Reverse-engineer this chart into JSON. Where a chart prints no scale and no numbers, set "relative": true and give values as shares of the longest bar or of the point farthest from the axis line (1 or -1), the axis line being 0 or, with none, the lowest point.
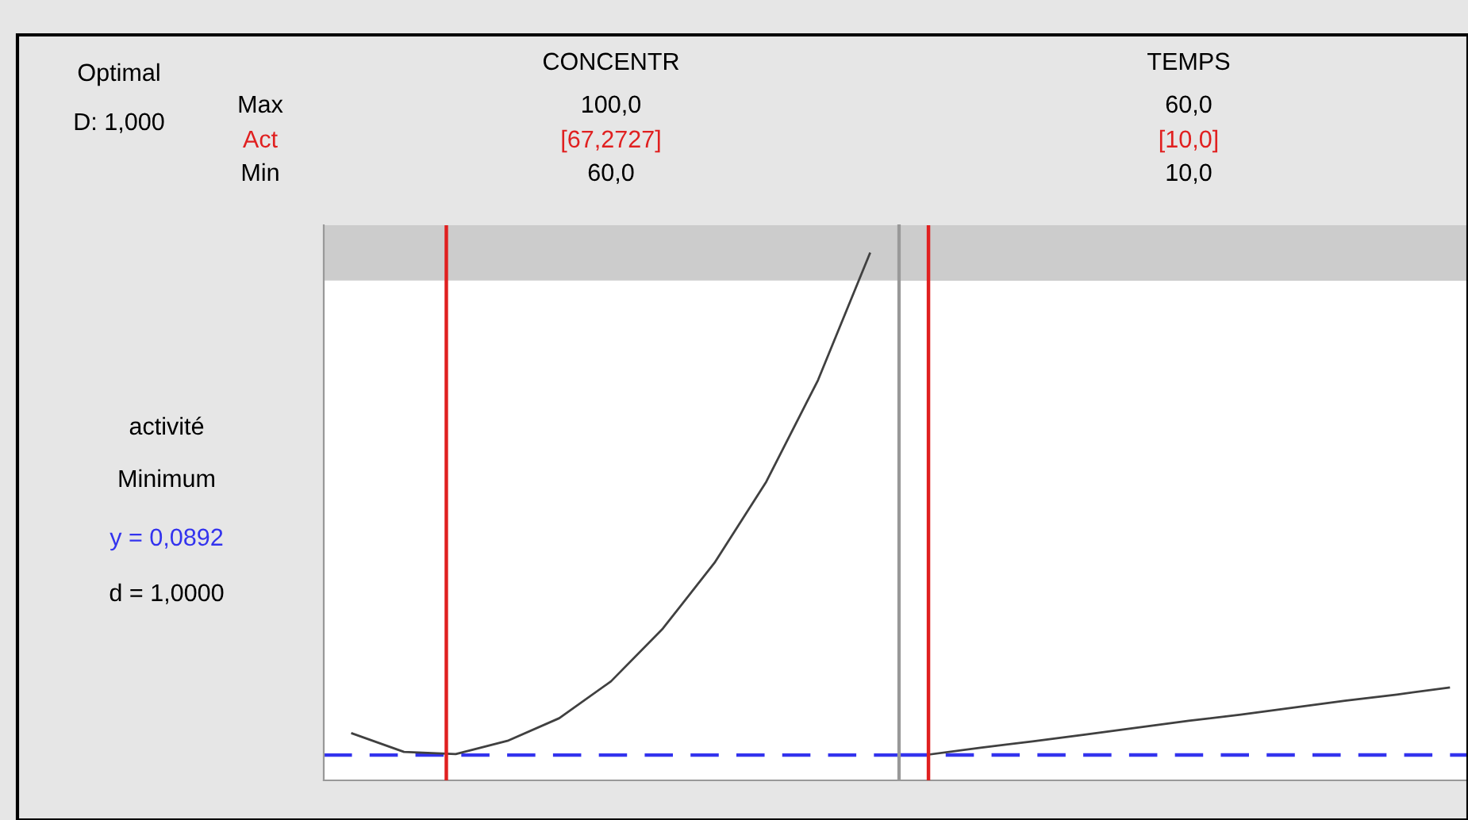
{
  "chart_data": [
    {
      "type": "line",
      "title": "CONCENTR",
      "relative": true,
      "legend": false,
      "marker": "none",
      "line_style": "solid",
      "categories": [
        null,
        null,
        null,
        null,
        null,
        null,
        null,
        null,
        null,
        null,
        null
      ],
      "series": [
        {
          "color": "#404040",
          "values": [
            0.089,
            0.054,
            0.05,
            0.075,
            0.118,
            0.188,
            0.288,
            0.413,
            0.567,
            0.76,
            1
          ]
        }
      ],
      "ref_lines": [
        {
          "axis": "y",
          "value": 0.048,
          "color": "#3333ee",
          "line_style": "dashed"
        }
      ],
      "bands": [
        {
          "axis": "y",
          "from": 0.949,
          "to": 1.054,
          "color": "#cccccc"
        }
      ],
      "annotations": [
        "100,0",
        "60,0",
        "[67,2727]",
        "Optimal",
        "D: 1,000",
        "Max",
        "Act",
        "Min",
        "activité",
        "Minimum",
        "y = 0,0892",
        "d = 1,0000"
      ]
    },
    {
      "type": "line",
      "title": "TEMPS",
      "relative": true,
      "legend": false,
      "marker": "none",
      "line_style": "solid",
      "categories": [
        null,
        null,
        null,
        null,
        null,
        null,
        null,
        null,
        null,
        null,
        null
      ],
      "series": [
        {
          "color": "#404040",
          "values": [
            0.278,
            0.352,
            0.42,
            0.494,
            0.568,
            0.642,
            0.71,
            0.784,
            0.858,
            0.926,
            1
          ]
        }
      ],
      "ref_lines": [
        {
          "axis": "y",
          "value": 0.273,
          "color": "#3333ee",
          "line_style": "dashed"
        }
      ],
      "bands": [
        {
          "axis": "y",
          "from": 5.39,
          "to": 5.99,
          "color": "#cccccc"
        }
      ],
      "annotations": [
        "60,0",
        "10,0",
        "[10,0]"
      ]
    }
  ]
}
